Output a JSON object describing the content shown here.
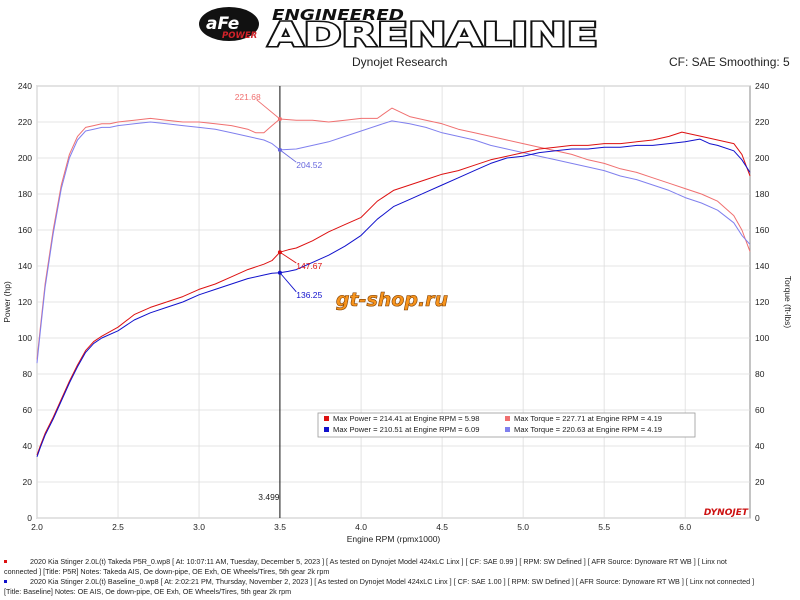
{
  "header": {
    "brand_badge": "aFe POWER",
    "brand_top": "ENGINEERED",
    "brand_main": "ADRENALINE",
    "subtitle": "Dynojet Research",
    "settings": "CF: SAE Smoothing: 5",
    "colors": {
      "brand_red": "#d2232a",
      "brand_black": "#111111"
    }
  },
  "watermark": {
    "text": "gt-shop.ru",
    "color": "#f7941d"
  },
  "dyno_logo": "DYNOJET",
  "chart_data": {
    "type": "line",
    "xlabel": "Engine RPM (rpmx1000)",
    "ylabel": "Power (hp)",
    "y2label": "Torque (ft-lbs)",
    "xlim": [
      2.0,
      6.4
    ],
    "ylim": [
      0,
      240
    ],
    "y2lim": [
      0,
      240
    ],
    "x_ticks": [
      "2.0",
      "2.5",
      "3.0",
      "3.5",
      "4.0",
      "4.5",
      "5.0",
      "5.5",
      "6.0"
    ],
    "y_ticks": [
      "0",
      "20",
      "40",
      "60",
      "80",
      "100",
      "120",
      "140",
      "160",
      "180",
      "200",
      "220",
      "240"
    ],
    "grid": true,
    "cursor": {
      "x": 3.499,
      "label": "3.499"
    },
    "series": [
      {
        "label": "Max Power = 214.41 at Engine RPM = 5.98",
        "kind": "power",
        "color": "#dd1111",
        "x": [
          2.0,
          2.02,
          2.05,
          2.1,
          2.15,
          2.2,
          2.25,
          2.3,
          2.35,
          2.4,
          2.5,
          2.6,
          2.7,
          2.8,
          2.9,
          3.0,
          3.1,
          3.2,
          3.3,
          3.4,
          3.45,
          3.499,
          3.55,
          3.6,
          3.7,
          3.8,
          3.9,
          4.0,
          4.1,
          4.2,
          4.3,
          4.4,
          4.5,
          4.6,
          4.7,
          4.8,
          4.9,
          5.0,
          5.1,
          5.2,
          5.3,
          5.4,
          5.5,
          5.6,
          5.7,
          5.8,
          5.9,
          5.98,
          6.05,
          6.1,
          6.2,
          6.3,
          6.35,
          6.4
        ],
        "y": [
          35,
          40,
          47,
          56,
          66,
          76,
          85,
          93,
          98,
          101,
          106,
          113,
          117,
          120,
          123,
          127,
          130,
          134,
          138,
          141,
          143,
          147.67,
          149,
          150,
          154,
          159,
          163,
          167,
          176,
          182,
          185,
          188,
          191,
          193,
          196,
          199,
          201,
          203,
          205,
          206,
          207,
          207,
          208,
          208,
          209,
          210,
          212,
          214.41,
          213,
          212,
          210,
          208,
          202,
          190
        ]
      },
      {
        "label": "Max Power = 210.51 at Engine RPM = 6.09",
        "kind": "power",
        "color": "#1111cc",
        "x": [
          2.0,
          2.02,
          2.05,
          2.1,
          2.15,
          2.2,
          2.25,
          2.3,
          2.35,
          2.4,
          2.5,
          2.6,
          2.7,
          2.8,
          2.9,
          3.0,
          3.1,
          3.2,
          3.3,
          3.4,
          3.45,
          3.499,
          3.55,
          3.6,
          3.7,
          3.8,
          3.9,
          4.0,
          4.1,
          4.2,
          4.3,
          4.4,
          4.5,
          4.6,
          4.7,
          4.8,
          4.9,
          5.0,
          5.1,
          5.2,
          5.3,
          5.4,
          5.5,
          5.6,
          5.7,
          5.8,
          5.9,
          6.0,
          6.09,
          6.15,
          6.2,
          6.3,
          6.35,
          6.4
        ],
        "y": [
          34,
          39,
          46,
          55,
          65,
          75,
          84,
          92,
          97,
          100,
          104,
          110,
          114,
          117,
          120,
          124,
          127,
          130,
          133,
          135,
          136,
          136.25,
          137,
          138,
          142,
          146,
          151,
          157,
          166,
          173,
          177,
          181,
          185,
          189,
          193,
          197,
          200,
          201,
          203,
          204,
          205,
          205,
          206,
          206,
          207,
          207,
          208,
          209,
          210.51,
          208,
          207,
          204,
          199,
          192
        ]
      },
      {
        "label": "Max Torque = 227.71 at Engine RPM = 4.19",
        "kind": "torque",
        "color": "#f07070",
        "x": [
          2.0,
          2.02,
          2.05,
          2.1,
          2.15,
          2.2,
          2.25,
          2.3,
          2.35,
          2.4,
          2.45,
          2.5,
          2.6,
          2.7,
          2.8,
          2.9,
          3.0,
          3.1,
          3.2,
          3.3,
          3.35,
          3.4,
          3.45,
          3.499,
          3.6,
          3.7,
          3.8,
          3.9,
          4.0,
          4.1,
          4.19,
          4.3,
          4.4,
          4.5,
          4.6,
          4.7,
          4.8,
          4.9,
          5.0,
          5.1,
          5.2,
          5.3,
          5.4,
          5.5,
          5.6,
          5.7,
          5.8,
          5.9,
          6.0,
          6.1,
          6.2,
          6.3,
          6.35,
          6.4
        ],
        "y": [
          88,
          105,
          130,
          160,
          185,
          202,
          212,
          217,
          218,
          219,
          219,
          220,
          221,
          222,
          221,
          220,
          220,
          219,
          218,
          216,
          214,
          214,
          218,
          221.68,
          221,
          221,
          220,
          221,
          222,
          222,
          227.71,
          223,
          221,
          219,
          216,
          214,
          212,
          210,
          208,
          206,
          204,
          202,
          199,
          197,
          194,
          192,
          189,
          186,
          183,
          180,
          176,
          168,
          160,
          148
        ]
      },
      {
        "label": "Max Torque = 220.63 at Engine RPM = 4.19",
        "kind": "torque",
        "color": "#8080ee",
        "x": [
          2.0,
          2.02,
          2.05,
          2.1,
          2.15,
          2.2,
          2.25,
          2.3,
          2.35,
          2.4,
          2.45,
          2.5,
          2.6,
          2.7,
          2.8,
          2.9,
          3.0,
          3.1,
          3.2,
          3.3,
          3.35,
          3.4,
          3.45,
          3.499,
          3.6,
          3.7,
          3.8,
          3.9,
          4.0,
          4.1,
          4.19,
          4.3,
          4.4,
          4.5,
          4.6,
          4.7,
          4.8,
          4.9,
          5.0,
          5.1,
          5.2,
          5.3,
          5.4,
          5.5,
          5.6,
          5.7,
          5.8,
          5.9,
          6.0,
          6.1,
          6.2,
          6.3,
          6.35,
          6.4
        ],
        "y": [
          86,
          103,
          128,
          158,
          183,
          200,
          210,
          215,
          216,
          217,
          217,
          218,
          219,
          220,
          219,
          218,
          217,
          216,
          214,
          212,
          211,
          210,
          208,
          204.52,
          205,
          207,
          209,
          212,
          215,
          218,
          220.63,
          219,
          217,
          214,
          212,
          210,
          207,
          205,
          203,
          201,
          199,
          197,
          195,
          193,
          190,
          188,
          185,
          182,
          178,
          175,
          171,
          164,
          157,
          152
        ]
      }
    ],
    "annotations": [
      {
        "text": "221.68",
        "x": 3.499,
        "y": 221.68,
        "color": "#f07070",
        "tx": 3.22,
        "ty": 234
      },
      {
        "text": "204.52",
        "x": 3.499,
        "y": 204.52,
        "color": "#6666dd",
        "tx": 3.6,
        "ty": 196
      },
      {
        "text": "147.67",
        "x": 3.499,
        "y": 147.67,
        "color": "#dd1111",
        "tx": 3.6,
        "ty": 140
      },
      {
        "text": "136.25",
        "x": 3.499,
        "y": 136.25,
        "color": "#1111cc",
        "tx": 3.6,
        "ty": 124
      }
    ],
    "legend": "center-bottom"
  },
  "footer": {
    "line1": "2020 Kia Stinger 2.0L(t) Takeda P5R_0.wp8 [ At: 10:07:11 AM, Tuesday, December 5, 2023 ] [ As tested on Dynojet Model 424xLC Linx ] [ CF: SAE 0.99 ] [ RPM: SW Defined ] [ AFR Source: Dynoware RT WB ] [ Linx not",
    "line2": "connected ] [Title: P5R]  Notes: Takeda AIS, Oe down-pipe, OE Exh, OE Wheels/Tires, 5th gear 2k rpm",
    "line3": "2020 Kia Stinger 2.0L(t) Baseline_0.wp8 [ At: 2:02:21 PM, Thursday, November 2, 2023 ] [ As tested on Dynojet Model 424xLC Linx ] [ CF: SAE 1.00 ] [ RPM: SW Defined ] [ AFR Source: Dynoware RT WB ] [ Linx not connected ]",
    "line4": "[Title: Baseline]  Notes: OE AIS, Oe down-pipe, OE Exh, OE Wheels/Tires, 5th gear 2k rpm",
    "color1": "#dd1111",
    "color2": "#1111cc"
  }
}
